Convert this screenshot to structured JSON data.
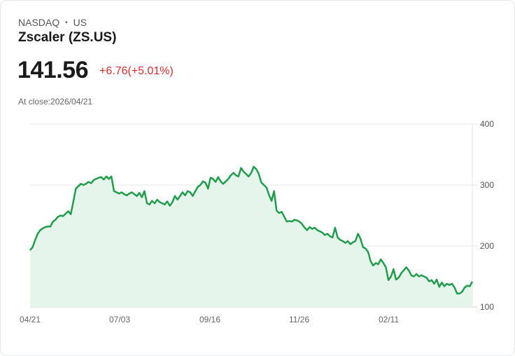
{
  "header": {
    "exchange": "NASDAQ",
    "separator": "•",
    "region": "US",
    "title": "Zscaler (ZS.US)",
    "price": "141.56",
    "change": "+6.76(+5.01%)",
    "at_close": "At close:2026/04/21"
  },
  "colors": {
    "line": "#1f9d4a",
    "fill": "#e6f5ec",
    "change_negative_or_positive": "#e02b2b",
    "grid": "#e5e5e5"
  },
  "chart_data": {
    "type": "area",
    "title": "Zscaler (ZS.US)",
    "xlabel": "",
    "ylabel": "",
    "ylim": [
      100,
      400
    ],
    "yticks": [
      400,
      300,
      200,
      100
    ],
    "xticks": [
      "04/21",
      "07/03",
      "09/16",
      "11/26",
      "02/11"
    ],
    "grid": true,
    "legend": null,
    "series": [
      {
        "name": "ZS.US",
        "values": [
          193,
          198,
          210,
          220,
          226,
          229,
          231,
          232,
          232,
          240,
          243,
          248,
          250,
          249,
          253,
          257,
          252,
          272,
          294,
          298,
          302,
          300,
          302,
          305,
          303,
          308,
          310,
          312,
          313,
          309,
          314,
          310,
          314,
          290,
          288,
          286,
          288,
          285,
          283,
          286,
          288,
          285,
          282,
          287,
          280,
          290,
          270,
          268,
          274,
          270,
          276,
          272,
          270,
          268,
          273,
          266,
          272,
          282,
          276,
          282,
          288,
          283,
          290,
          288,
          282,
          290,
          297,
          300,
          306,
          304,
          294,
          312,
          310,
          305,
          313,
          306,
          302,
          306,
          310,
          316,
          320,
          316,
          314,
          328,
          322,
          318,
          314,
          320,
          330,
          326,
          318,
          304,
          300,
          296,
          284,
          274,
          290,
          258,
          254,
          256,
          248,
          240,
          241,
          240,
          243,
          242,
          240,
          236,
          230,
          226,
          231,
          228,
          230,
          226,
          224,
          222,
          218,
          220,
          216,
          214,
          230,
          214,
          210,
          208,
          205,
          208,
          203,
          206,
          208,
          220,
          212,
          198,
          196,
          190,
          175,
          168,
          172,
          170,
          178,
          172,
          165,
          144,
          150,
          162,
          145,
          148,
          155,
          160,
          165,
          160,
          152,
          150,
          154,
          150,
          152,
          150,
          148,
          142,
          144,
          138,
          145,
          133,
          140,
          134,
          138,
          136,
          138,
          132,
          122,
          122,
          125,
          132,
          135,
          134,
          141.56
        ]
      }
    ]
  }
}
